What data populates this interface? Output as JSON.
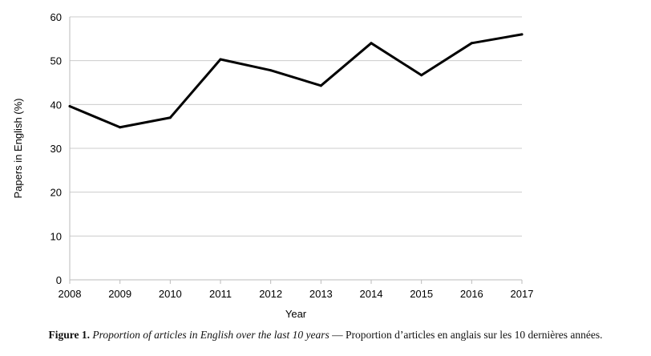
{
  "chart_data": {
    "type": "line",
    "title": "",
    "xlabel": "Year",
    "ylabel": "Papers in English (%)",
    "x": [
      2008,
      2009,
      2010,
      2011,
      2012,
      2013,
      2014,
      2015,
      2016,
      2017
    ],
    "series": [
      {
        "values": [
          39.6,
          34.8,
          37.0,
          50.3,
          47.8,
          44.3,
          54.0,
          46.7,
          54.0,
          56.0
        ]
      }
    ],
    "xticks": [
      "2008",
      "2009",
      "2010",
      "2011",
      "2012",
      "2013",
      "2014",
      "2015",
      "2016",
      "2017"
    ],
    "yticks": [
      "0",
      "10",
      "20",
      "30",
      "40",
      "50",
      "60"
    ],
    "xlim": [
      2008,
      2017
    ],
    "ylim": [
      0,
      60
    ],
    "grid": "horizontal",
    "line_color": "#000000",
    "grid_color": "#cccccc"
  },
  "caption": {
    "label": "Figure 1.",
    "italic": "Proportion of articles in English over the last 10 years",
    "separator": "—",
    "french": "Proportion d’articles en anglais sur les 10 dernières années."
  }
}
